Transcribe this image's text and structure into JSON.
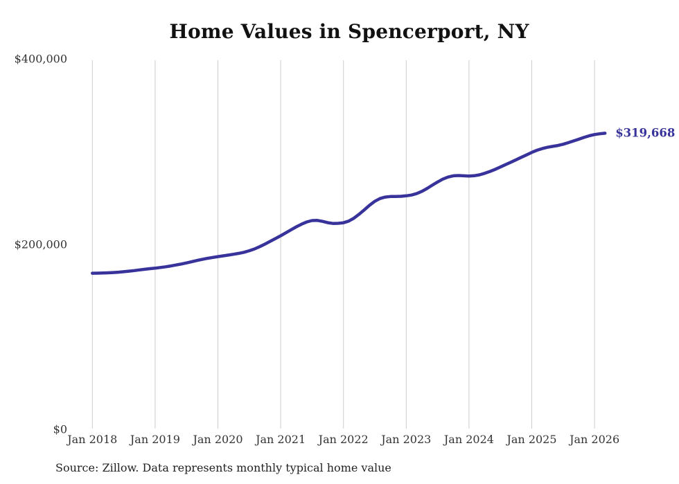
{
  "title": "Home Values in Spencerport, NY",
  "end_label": "$319,668",
  "source_note": "Source: Zillow. Data represents monthly typical home value",
  "colors": {
    "line": "#38339b",
    "end_label_text": "#38339b",
    "grid": "#cccccc",
    "title_text": "#111111",
    "axis_text": "#333333",
    "source_text": "#222222",
    "background": "#ffffff"
  },
  "chart_data": {
    "type": "line",
    "title": "Home Values in Spencerport, NY",
    "xlabel": "",
    "ylabel": "",
    "ylim": [
      0,
      400000
    ],
    "grid": "vertical-only",
    "legend": "none",
    "x_tick_labels": [
      "Jan 2018",
      "Jan 2019",
      "Jan 2020",
      "Jan 2021",
      "Jan 2022",
      "Jan 2023",
      "Jan 2024",
      "Jan 2025",
      "Jan 2026"
    ],
    "y_ticks": [
      {
        "label": "$0",
        "value": 0
      },
      {
        "label": "$200,000",
        "value": 200000
      },
      {
        "label": "$400,000",
        "value": 400000
      }
    ],
    "start_month": "2018-01",
    "end_month": "2026-03",
    "final_value": 319668,
    "final_value_label": "$319,668",
    "series": [
      {
        "name": "Monthly typical home value",
        "values": [
          168500,
          168600,
          168750,
          168950,
          169250,
          169650,
          170150,
          170750,
          171400,
          172100,
          172800,
          173450,
          174000,
          174700,
          175500,
          176400,
          177400,
          178500,
          179700,
          181000,
          182300,
          183500,
          184600,
          185600,
          186500,
          187300,
          188100,
          189000,
          190000,
          191200,
          192800,
          194800,
          197200,
          200000,
          203000,
          206000,
          209000,
          212200,
          215500,
          218700,
          221500,
          223900,
          225400,
          225600,
          224500,
          223100,
          222300,
          222400,
          223000,
          224800,
          228000,
          232300,
          237000,
          242000,
          246200,
          249200,
          250800,
          251400,
          251400,
          251600,
          252100,
          252900,
          254500,
          257000,
          260100,
          263600,
          267100,
          270100,
          272400,
          273700,
          274000,
          273700,
          273400,
          273800,
          274800,
          276400,
          278400,
          280700,
          283200,
          285800,
          288400,
          291000,
          293700,
          296300,
          299000,
          301300,
          303100,
          304500,
          305500,
          306500,
          307800,
          309500,
          311400,
          313300,
          315200,
          316900,
          318300,
          319100,
          319668
        ]
      }
    ]
  }
}
